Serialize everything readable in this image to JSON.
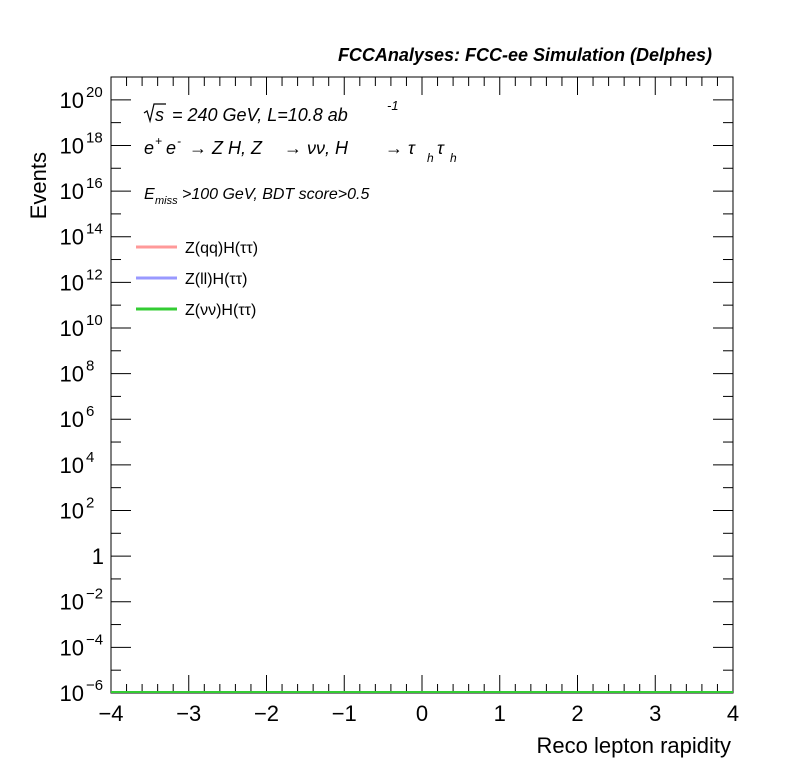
{
  "header": {
    "title": "FCCAnalyses: FCC-ee Simulation (Delphes)"
  },
  "annotations": {
    "sqrt_s": "s",
    "energy_lumi": "= 240 GeV, L=10.8 ab",
    "lumi_exp": "-1",
    "process": {
      "ee": "e",
      "ee_sup_plus": "+",
      "ee_sup_minus": "-",
      "arrow1": "→ Z H, Z",
      "arrow2": "→ νν, H",
      "arrow3": "→ τ",
      "tau2": "τ",
      "sub_h": "h"
    },
    "cut": {
      "E": "E",
      "sub": "miss",
      "rest": ">100 GeV, BDT score>0.5"
    }
  },
  "chart_data": {
    "type": "line",
    "xlabel": "Reco lepton rapidity",
    "ylabel": "Events",
    "xlim": [
      -4,
      4
    ],
    "ylim": [
      1e-06,
      1e+21
    ],
    "yscale": "log",
    "x_ticks": [
      "−4",
      "−3",
      "−2",
      "−1",
      "0",
      "1",
      "2",
      "3",
      "4"
    ],
    "y_ticks": [
      {
        "base": "10",
        "exp": "20",
        "value": 1e+20
      },
      {
        "base": "10",
        "exp": "18",
        "value": 1e+18
      },
      {
        "base": "10",
        "exp": "16",
        "value": 1e+16
      },
      {
        "base": "10",
        "exp": "14",
        "value": 100000000000000.0
      },
      {
        "base": "10",
        "exp": "12",
        "value": 1000000000000.0
      },
      {
        "base": "10",
        "exp": "10",
        "value": 10000000000.0
      },
      {
        "base": "10",
        "exp": "8",
        "value": 100000000.0
      },
      {
        "base": "10",
        "exp": "6",
        "value": 1000000.0
      },
      {
        "base": "10",
        "exp": "4",
        "value": 10000.0
      },
      {
        "base": "10",
        "exp": "2",
        "value": 100.0
      },
      {
        "base": "1",
        "exp": "",
        "value": 1
      },
      {
        "base": "10",
        "exp": "−2",
        "value": 0.01
      },
      {
        "base": "10",
        "exp": "−4",
        "value": 0.0001
      },
      {
        "base": "10",
        "exp": "−6",
        "value": 1e-06
      }
    ],
    "legend_position": "top-left",
    "series": [
      {
        "name": "Z(qq)H(ττ)",
        "color": "#ff9999",
        "x": [
          -4,
          4
        ],
        "y": [
          1e-06,
          1e-06
        ]
      },
      {
        "name": "Z(ll)H(ττ)",
        "color": "#9999ff",
        "x": [
          -4,
          4
        ],
        "y": [
          1e-06,
          1e-06
        ]
      },
      {
        "name": "Z(νν)H(ττ)",
        "color": "#33cc33",
        "x": [
          -4,
          4
        ],
        "y": [
          1e-06,
          1e-06
        ]
      }
    ]
  }
}
